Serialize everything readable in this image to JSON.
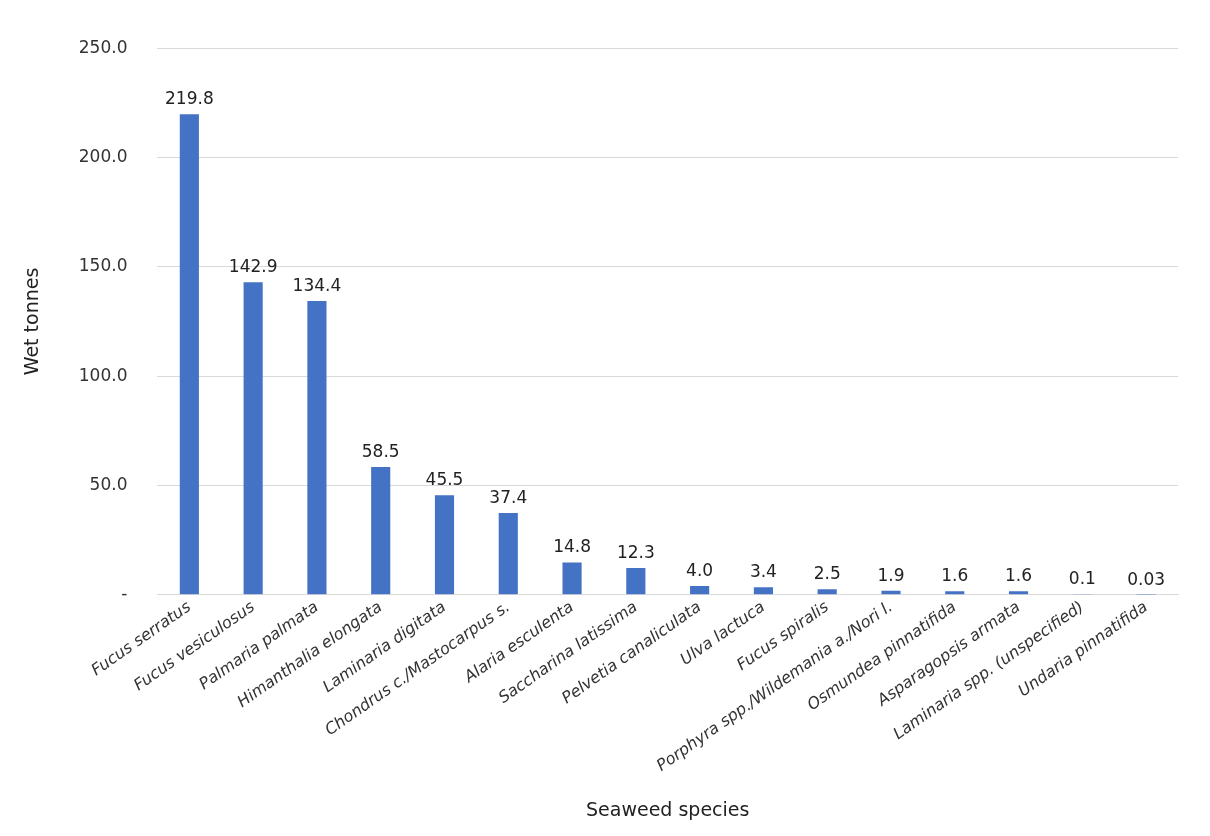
{
  "chart_data": {
    "type": "bar",
    "xlabel": "Seaweed species",
    "ylabel": "Wet tonnes",
    "categories": [
      "Fucus serratus",
      "Fucus vesiculosus",
      "Palmaria palmata",
      "Himanthalia elongata",
      "Laminaria digitata",
      "Chondrus c./Mastocarpus s.",
      "Alaria esculenta",
      "Saccharina latissima",
      "Pelvetia canaliculata",
      "Ulva lactuca",
      "Fucus spiralis",
      "Porphyra spp./Wildemania a./Nori l.",
      "Osmundea pinnatifida",
      "Asparagopsis armata",
      "Laminaria spp. (unspecified)",
      "Undaria pinnatifida"
    ],
    "values": [
      219.8,
      142.9,
      134.4,
      58.5,
      45.5,
      37.4,
      14.8,
      12.3,
      4.0,
      3.4,
      2.5,
      1.9,
      1.6,
      1.6,
      0.1,
      0.03
    ],
    "value_labels": [
      "219.8",
      "142.9",
      "134.4",
      "58.5",
      "45.5",
      "37.4",
      "14.8",
      "12.3",
      "4.0",
      "3.4",
      "2.5",
      "1.9",
      "1.6",
      "1.6",
      "0.1",
      "0.03"
    ],
    "color": "#4472c4",
    "ylim": [
      0,
      250
    ],
    "yticks": [
      {
        "value": 0,
        "label": "-"
      },
      {
        "value": 50,
        "label": "50.0"
      },
      {
        "value": 100,
        "label": "100.0"
      },
      {
        "value": 150,
        "label": "150.0"
      },
      {
        "value": 200,
        "label": "200.0"
      },
      {
        "value": 250,
        "label": "250.0"
      }
    ],
    "grid": "y"
  }
}
